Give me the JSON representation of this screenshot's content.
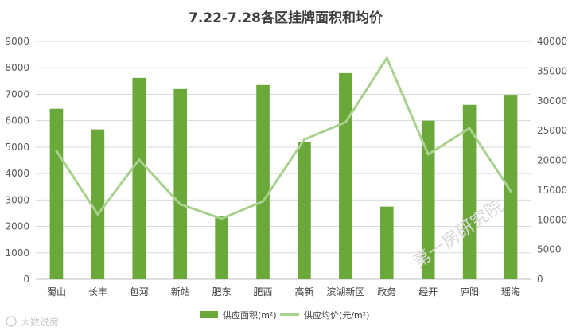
{
  "chart_data": {
    "type": "bar",
    "title": "7.22-7.28各区挂牌面积和均价",
    "categories": [
      "蜀山",
      "长丰",
      "包河",
      "新站",
      "肥东",
      "肥西",
      "高新",
      "滨湖新区",
      "政务",
      "经开",
      "庐阳",
      "瑶海"
    ],
    "series": [
      {
        "name": "供应面积(m²)",
        "type": "bar",
        "axis": "left",
        "color": "#6aa83a",
        "values": [
          6450,
          5670,
          7620,
          7200,
          2400,
          7350,
          5200,
          7800,
          2750,
          6000,
          6600,
          6950
        ]
      },
      {
        "name": "供应均价(元/m²)",
        "type": "line",
        "axis": "right",
        "color": "#a9d18e",
        "values": [
          21600,
          10900,
          20100,
          12600,
          10200,
          13100,
          23500,
          26400,
          37200,
          21000,
          25400,
          14800
        ]
      }
    ],
    "y_left": {
      "min": 0,
      "max": 9000,
      "step": 1000,
      "ticks": [
        "0",
        "1000",
        "2000",
        "3000",
        "4000",
        "5000",
        "6000",
        "7000",
        "8000",
        "9000"
      ]
    },
    "y_right": {
      "min": 0,
      "max": 40000,
      "step": 5000,
      "ticks": [
        "0",
        "5000",
        "10000",
        "15000",
        "20000",
        "25000",
        "30000",
        "35000",
        "40000"
      ]
    },
    "grid": true,
    "legend_position": "bottom"
  },
  "watermark": "第一房研究院",
  "brand_logo_text": "大数说房"
}
